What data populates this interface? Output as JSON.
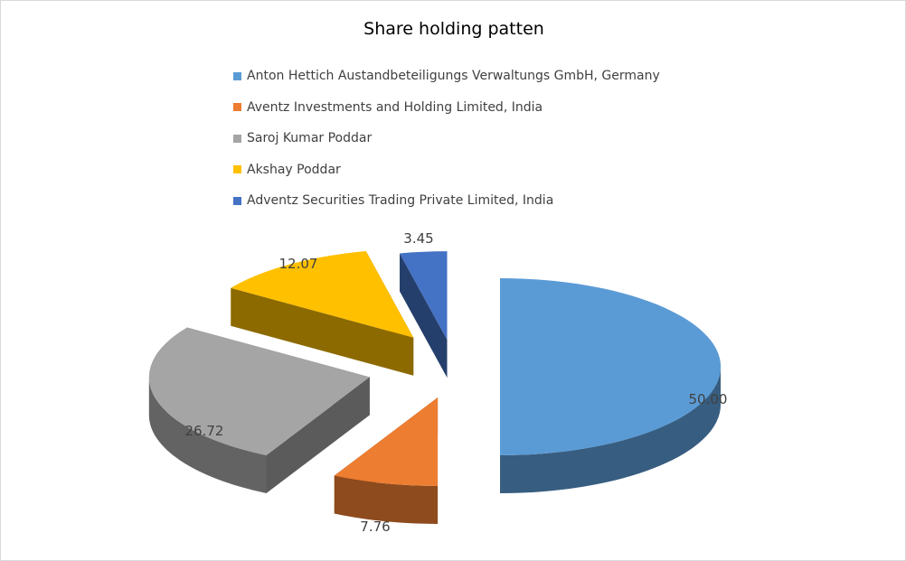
{
  "chart_data": {
    "type": "pie",
    "title": "Share holding patten",
    "legend_position": "top",
    "style": "3d-exploded",
    "slices": [
      {
        "label": "Anton Hettich Austandbeteiligungs Verwaltungs GmbH, Germany",
        "value": 50.0,
        "display": "50.00",
        "color": "#5B9BD5"
      },
      {
        "label": "Aventz Investments and Holding Limited, India",
        "value": 7.76,
        "display": "7.76",
        "color": "#ED7D31"
      },
      {
        "label": "Saroj Kumar Poddar",
        "value": 26.72,
        "display": "26.72",
        "color": "#A5A5A5"
      },
      {
        "label": "Akshay Poddar",
        "value": 12.07,
        "display": "12.07",
        "color": "#FFC000"
      },
      {
        "label": "Adventz Securities Trading Private Limited, India",
        "value": 3.45,
        "display": "3.45",
        "color": "#4472C4"
      }
    ]
  }
}
